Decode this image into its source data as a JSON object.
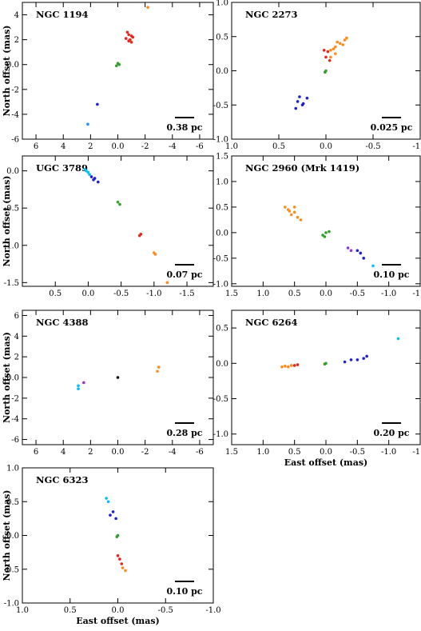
{
  "chart_data": [
    {
      "type": "scatter",
      "title": "NGC 1194",
      "xlim": [
        7,
        -7
      ],
      "ylim": [
        -6,
        5
      ],
      "xticks": [
        6,
        4,
        2,
        0,
        -2,
        -4,
        -6
      ],
      "yticks": [
        4,
        2,
        0,
        -2,
        -4,
        -6
      ],
      "ylabel": "North offset (mas)",
      "xlabel": "",
      "scalebar": "0.38 pc",
      "series": [
        {
          "color": "#ff8c1a",
          "points": [
            [
              -2.2,
              4.6
            ]
          ]
        },
        {
          "color": "#e8241c",
          "points": [
            [
              -0.7,
              2.6
            ],
            [
              -0.8,
              2.4
            ],
            [
              -1.0,
              2.3
            ],
            [
              -0.9,
              2.0
            ],
            [
              -1.1,
              2.2
            ],
            [
              -0.6,
              2.1
            ],
            [
              -0.8,
              1.9
            ],
            [
              -1.0,
              1.8
            ]
          ]
        },
        {
          "color": "#33a02c",
          "points": [
            [
              0.0,
              0.1
            ],
            [
              0.1,
              -0.1
            ],
            [
              -0.1,
              0.0
            ]
          ]
        },
        {
          "color": "#1f1fd6",
          "points": [
            [
              1.5,
              -3.2
            ]
          ]
        },
        {
          "color": "#1e90ff",
          "points": [
            [
              2.2,
              -4.8
            ]
          ]
        }
      ]
    },
    {
      "type": "scatter",
      "title": "NGC 2273",
      "xlim": [
        1.0,
        -1.0
      ],
      "ylim": [
        -1.0,
        1.0
      ],
      "xticks": [
        1.0,
        0.5,
        0.0,
        -0.5,
        -1.0
      ],
      "yticks": [
        1.0,
        0.5,
        0.0,
        -0.5,
        -1.0
      ],
      "ylabel": "",
      "xlabel": "",
      "scalebar": "0.025 pc",
      "series": [
        {
          "color": "#ff8c1a",
          "points": [
            [
              -0.05,
              0.3
            ],
            [
              -0.1,
              0.35
            ],
            [
              -0.15,
              0.4
            ],
            [
              -0.2,
              0.45
            ],
            [
              -0.1,
              0.25
            ],
            [
              -0.05,
              0.2
            ],
            [
              -0.18,
              0.38
            ],
            [
              -0.22,
              0.48
            ],
            [
              -0.08,
              0.32
            ],
            [
              -0.12,
              0.42
            ]
          ]
        },
        {
          "color": "#e8241c",
          "points": [
            [
              0.0,
              0.2
            ],
            [
              0.02,
              0.3
            ],
            [
              -0.04,
              0.15
            ],
            [
              -0.02,
              0.28
            ]
          ]
        },
        {
          "color": "#33a02c",
          "points": [
            [
              0.0,
              0.0
            ],
            [
              0.01,
              -0.02
            ]
          ]
        },
        {
          "color": "#1f1fd6",
          "points": [
            [
              0.3,
              -0.45
            ],
            [
              0.25,
              -0.5
            ],
            [
              0.32,
              -0.55
            ],
            [
              0.2,
              -0.4
            ],
            [
              0.28,
              -0.38
            ],
            [
              0.24,
              -0.48
            ]
          ]
        }
      ]
    },
    {
      "type": "scatter",
      "title": "UGC 3789",
      "xlim": [
        1.0,
        -1.9
      ],
      "ylim": [
        -1.55,
        0.2
      ],
      "xticks": [
        0.5,
        0.0,
        -0.5,
        -1.0,
        -1.5
      ],
      "yticks": [
        0.0,
        -0.5,
        -1.0,
        -1.5
      ],
      "ylabel": "North offset (mas)",
      "xlabel": "",
      "scalebar": "0.07 pc",
      "series": [
        {
          "color": "#00bfff",
          "points": [
            [
              0.05,
              0.02
            ],
            [
              0.0,
              -0.02
            ],
            [
              -0.02,
              -0.05
            ],
            [
              0.03,
              0.0
            ]
          ]
        },
        {
          "color": "#1f1fd6",
          "points": [
            [
              -0.05,
              -0.08
            ],
            [
              -0.1,
              -0.1
            ],
            [
              -0.15,
              -0.15
            ],
            [
              -0.08,
              -0.12
            ]
          ]
        },
        {
          "color": "#33a02c",
          "points": [
            [
              -0.45,
              -0.42
            ],
            [
              -0.48,
              -0.45
            ]
          ]
        },
        {
          "color": "#e8241c",
          "points": [
            [
              -0.8,
              -0.85
            ],
            [
              -0.78,
              -0.87
            ]
          ]
        },
        {
          "color": "#ff8c1a",
          "points": [
            [
              -1.0,
              -1.1
            ],
            [
              -1.02,
              -1.12
            ],
            [
              -1.2,
              -1.5
            ]
          ]
        }
      ]
    },
    {
      "type": "scatter",
      "title": "NGC 2960 (Mrk 1419)",
      "xlim": [
        1.5,
        -1.5
      ],
      "ylim": [
        -1.05,
        1.5
      ],
      "xticks": [
        1.5,
        1.0,
        0.5,
        0.0,
        -0.5,
        -1.0,
        -1.5
      ],
      "yticks": [
        1.5,
        1.0,
        0.5,
        0.0,
        -0.5,
        -1.0
      ],
      "ylabel": "",
      "xlabel": "",
      "scalebar": "0.10 pc",
      "series": [
        {
          "color": "#ff8c1a",
          "points": [
            [
              0.6,
              0.45
            ],
            [
              0.5,
              0.4
            ],
            [
              0.55,
              0.35
            ],
            [
              0.45,
              0.3
            ],
            [
              0.65,
              0.5
            ],
            [
              0.5,
              0.5
            ],
            [
              0.4,
              0.25
            ],
            [
              0.58,
              0.42
            ]
          ]
        },
        {
          "color": "#33a02c",
          "points": [
            [
              0.0,
              0.0
            ],
            [
              0.05,
              -0.05
            ],
            [
              -0.05,
              0.02
            ],
            [
              0.02,
              -0.08
            ]
          ]
        },
        {
          "color": "#9932cc",
          "points": [
            [
              -0.35,
              -0.3
            ],
            [
              -0.4,
              -0.35
            ]
          ]
        },
        {
          "color": "#1f1fd6",
          "points": [
            [
              -0.5,
              -0.35
            ],
            [
              -0.55,
              -0.4
            ],
            [
              -0.6,
              -0.5
            ]
          ]
        },
        {
          "color": "#00bfff",
          "points": [
            [
              -0.75,
              -0.65
            ]
          ]
        }
      ]
    },
    {
      "type": "scatter",
      "title": "NGC 4388",
      "xlim": [
        7,
        -7
      ],
      "ylim": [
        -6.5,
        6.5
      ],
      "xticks": [
        6,
        4,
        2,
        0,
        -2,
        -4,
        -6
      ],
      "yticks": [
        6,
        4,
        2,
        0,
        -2,
        -4,
        -6
      ],
      "ylabel": "North offset (mas)",
      "xlabel": "",
      "scalebar": "0.28 pc",
      "series": [
        {
          "color": "#ff8c1a",
          "points": [
            [
              -3.0,
              1.0
            ],
            [
              -2.9,
              0.6
            ]
          ]
        },
        {
          "color": "#000000",
          "points": [
            [
              0.0,
              0.0
            ]
          ]
        },
        {
          "color": "#9932cc",
          "points": [
            [
              2.5,
              -0.5
            ]
          ]
        },
        {
          "color": "#00bfff",
          "points": [
            [
              2.9,
              -0.8
            ],
            [
              2.9,
              -1.1
            ]
          ]
        }
      ]
    },
    {
      "type": "scatter",
      "title": "NGC 6264",
      "xlim": [
        1.5,
        -1.5
      ],
      "ylim": [
        -1.15,
        0.75
      ],
      "xticks": [
        1.5,
        1.0,
        0.5,
        0.0,
        -0.5,
        -1.0,
        -1.5
      ],
      "yticks": [
        0.5,
        0.0,
        -0.5,
        -1.0
      ],
      "ylabel": "",
      "xlabel": "East offset (mas)",
      "scalebar": "0.20 pc",
      "series": [
        {
          "color": "#ff8c1a",
          "points": [
            [
              0.7,
              -0.05
            ],
            [
              0.6,
              -0.05
            ],
            [
              0.55,
              -0.03
            ],
            [
              0.65,
              -0.04
            ]
          ]
        },
        {
          "color": "#e8241c",
          "points": [
            [
              0.45,
              -0.02
            ],
            [
              0.5,
              -0.03
            ]
          ]
        },
        {
          "color": "#33a02c",
          "points": [
            [
              0.0,
              0.0
            ],
            [
              0.02,
              -0.01
            ]
          ]
        },
        {
          "color": "#1f1fd6",
          "points": [
            [
              -0.3,
              0.02
            ],
            [
              -0.4,
              0.05
            ],
            [
              -0.5,
              0.05
            ],
            [
              -0.6,
              0.07
            ],
            [
              -0.65,
              0.1
            ]
          ]
        },
        {
          "color": "#00bfff",
          "points": [
            [
              -1.15,
              0.35
            ]
          ]
        }
      ]
    },
    {
      "type": "scatter",
      "title": "NGC 6323",
      "xlim": [
        1.0,
        -1.0
      ],
      "ylim": [
        -1.0,
        1.0
      ],
      "xticks": [
        1.0,
        0.5,
        0.0,
        -0.5,
        -1.0
      ],
      "yticks": [
        1.0,
        0.5,
        0.0,
        -0.5,
        -1.0
      ],
      "ylabel": "North offset (mas)",
      "xlabel": "East offset (mas)",
      "scalebar": "0.10 pc",
      "series": [
        {
          "color": "#00bfff",
          "points": [
            [
              0.12,
              0.55
            ],
            [
              0.1,
              0.5
            ]
          ]
        },
        {
          "color": "#1f1fd6",
          "points": [
            [
              0.05,
              0.35
            ],
            [
              0.08,
              0.3
            ],
            [
              0.02,
              0.25
            ]
          ]
        },
        {
          "color": "#33a02c",
          "points": [
            [
              0.0,
              0.0
            ],
            [
              0.01,
              -0.02
            ]
          ]
        },
        {
          "color": "#e8241c",
          "points": [
            [
              -0.02,
              -0.35
            ],
            [
              -0.04,
              -0.42
            ],
            [
              0.0,
              -0.3
            ]
          ]
        },
        {
          "color": "#ff8c1a",
          "points": [
            [
              -0.05,
              -0.48
            ],
            [
              -0.08,
              -0.52
            ]
          ]
        }
      ]
    }
  ]
}
